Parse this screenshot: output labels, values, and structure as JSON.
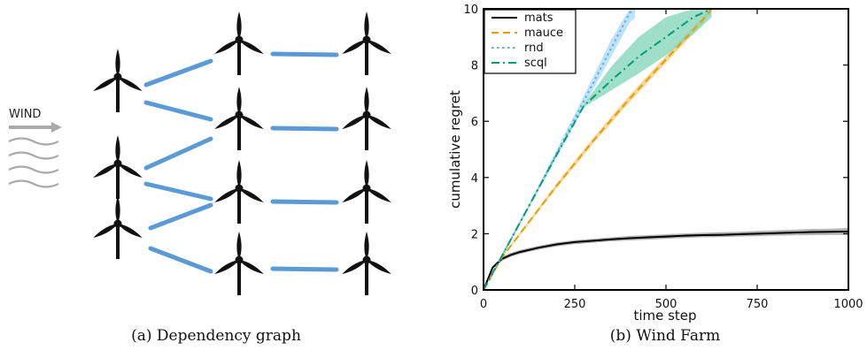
{
  "panel_a": {
    "caption": "(a) Dependency graph",
    "wind_label": "WIND",
    "edge_color": "#5b9bd5",
    "turbine_color": "#111111",
    "arrow_color": "#aaaaaa"
  },
  "panel_b": {
    "caption": "(b) Wind Farm"
  },
  "chart_data": {
    "type": "line",
    "xlabel": "time step",
    "ylabel": "cumulative regret",
    "xlim": [
      0,
      1000
    ],
    "ylim": [
      0,
      10
    ],
    "xticks": [
      0,
      250,
      500,
      750,
      1000
    ],
    "yticks": [
      0,
      2,
      4,
      6,
      8,
      10
    ],
    "legend_position": "top-left",
    "series": [
      {
        "name": "mats",
        "color": "#000000",
        "dash": "solid",
        "band_color": "#9a9a9a",
        "x": [
          0,
          25,
          50,
          75,
          100,
          150,
          200,
          250,
          300,
          350,
          400,
          450,
          500,
          550,
          600,
          650,
          700,
          750,
          800,
          850,
          900,
          950,
          1000
        ],
        "y": [
          0,
          0.8,
          1.1,
          1.25,
          1.35,
          1.5,
          1.62,
          1.7,
          1.75,
          1.8,
          1.84,
          1.87,
          1.9,
          1.93,
          1.95,
          1.96,
          1.98,
          2.0,
          2.02,
          2.04,
          2.06,
          2.07,
          2.08
        ],
        "y_lower": [
          0,
          0.75,
          1.03,
          1.18,
          1.28,
          1.43,
          1.55,
          1.63,
          1.68,
          1.73,
          1.76,
          1.79,
          1.82,
          1.85,
          1.87,
          1.88,
          1.9,
          1.91,
          1.93,
          1.94,
          1.95,
          1.96,
          1.96
        ],
        "y_upper": [
          0,
          0.85,
          1.17,
          1.32,
          1.42,
          1.57,
          1.69,
          1.77,
          1.82,
          1.87,
          1.92,
          1.95,
          1.98,
          2.01,
          2.03,
          2.05,
          2.07,
          2.1,
          2.12,
          2.14,
          2.17,
          2.18,
          2.2
        ]
      },
      {
        "name": "mauce",
        "color": "#e69f00",
        "dash": "dashed",
        "band_color": "#f5c872",
        "x": [
          0,
          50,
          100,
          200,
          300,
          400,
          500,
          600,
          625
        ],
        "y": [
          0,
          1.15,
          2.0,
          3.7,
          5.3,
          6.8,
          8.2,
          9.6,
          10.0
        ],
        "y_lower": [
          0,
          1.12,
          1.95,
          3.62,
          5.2,
          6.68,
          8.08,
          9.46,
          9.85
        ],
        "y_upper": [
          0,
          1.18,
          2.05,
          3.78,
          5.4,
          6.92,
          8.32,
          9.74,
          10.0
        ]
      },
      {
        "name": "rnd",
        "color": "#56b4e9",
        "dash": "dotted",
        "band_color": "#a9d8f5",
        "x": [
          0,
          50,
          100,
          150,
          200,
          250,
          300,
          350,
          400,
          415
        ],
        "y": [
          0,
          1.2,
          2.4,
          3.6,
          4.85,
          6.1,
          7.35,
          8.6,
          9.85,
          10.0
        ],
        "y_lower": [
          0,
          1.17,
          2.34,
          3.52,
          4.72,
          5.95,
          7.12,
          8.3,
          9.5,
          9.68
        ],
        "y_upper": [
          0,
          1.23,
          2.46,
          3.68,
          4.98,
          6.25,
          7.58,
          8.9,
          10.0,
          10.0
        ]
      },
      {
        "name": "scql",
        "color": "#009e73",
        "dash": "dashdot",
        "band_color": "#7fd4b8",
        "x": [
          0,
          50,
          100,
          150,
          200,
          275,
          350,
          425,
          500,
          575,
          625
        ],
        "y": [
          0,
          1.2,
          2.4,
          3.6,
          4.8,
          6.55,
          7.45,
          8.3,
          9.0,
          9.7,
          10.0
        ],
        "y_lower": [
          0,
          1.18,
          2.36,
          3.55,
          4.74,
          6.5,
          7.1,
          7.7,
          8.35,
          9.1,
          9.7
        ],
        "y_upper": [
          0,
          1.22,
          2.44,
          3.65,
          4.86,
          6.6,
          7.95,
          9.0,
          9.7,
          10.0,
          10.0
        ]
      }
    ]
  }
}
